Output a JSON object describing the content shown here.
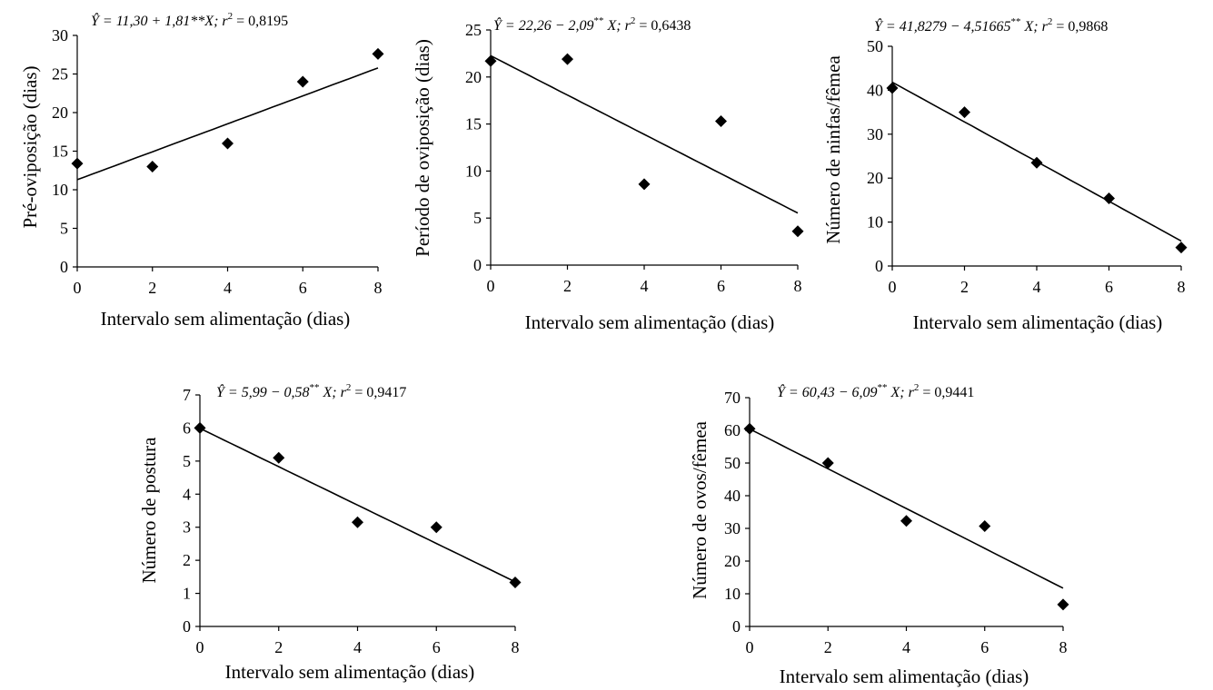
{
  "chart_data": [
    {
      "type": "scatter",
      "equation": "Ŷ = 11,30 + 1,81**X; r² = 0,8195",
      "equation_parts": {
        "lhs": "Ŷ = 11,30 + 1,81**X; ",
        "r": "r",
        "sup": "2",
        "rhs": " = 0,8195"
      },
      "ylabel": "Pré-oviposição (dias)",
      "xlabel": "Intervalo sem alimentação (dias)",
      "xlim": [
        0,
        8
      ],
      "ylim": [
        0,
        30
      ],
      "xticks": [
        "0",
        "2",
        "4",
        "6",
        "8"
      ],
      "yticks": [
        "0",
        "5",
        "10",
        "15",
        "20",
        "25",
        "30"
      ],
      "x": [
        0,
        2,
        4,
        6,
        8
      ],
      "y": [
        13.4,
        13.0,
        16.0,
        24.0,
        27.6
      ],
      "fit": {
        "intercept": 11.3,
        "slope": 1.81
      }
    },
    {
      "type": "scatter",
      "equation": "Ŷ = 22,26 − 2,09** X; r² = 0,6438",
      "equation_parts": {
        "lhs": "Ŷ = 22,26 − 2,09",
        "stars": "**",
        "mid": " X;   ",
        "r": "r",
        "sup": "2",
        "rhs": " = 0,6438"
      },
      "ylabel": "Período de oviposição (dias)",
      "xlabel": "Intervalo sem alimentação (dias)",
      "xlim": [
        0,
        8
      ],
      "ylim": [
        0,
        25
      ],
      "xticks": [
        "0",
        "2",
        "4",
        "6",
        "8"
      ],
      "yticks": [
        "0",
        "5",
        "10",
        "15",
        "20",
        "25"
      ],
      "x": [
        0,
        2,
        4,
        6,
        8
      ],
      "y": [
        21.7,
        21.9,
        8.6,
        15.3,
        3.6
      ],
      "fit": {
        "intercept": 22.26,
        "slope": -2.09
      }
    },
    {
      "type": "scatter",
      "equation": "Ŷ = 41,8279 − 4,51665** X; r² = 0,9868",
      "equation_parts": {
        "lhs": "Ŷ = 41,8279 − 4,51665",
        "stars": "**",
        "mid": " X;   ",
        "r": "r",
        "sup": "2",
        "rhs": " = 0,9868"
      },
      "ylabel": "Número de ninfas/fêmea",
      "xlabel": "Intervalo sem alimentação (dias)",
      "xlim": [
        0,
        8
      ],
      "ylim": [
        0,
        50
      ],
      "xticks": [
        "0",
        "2",
        "4",
        "6",
        "8"
      ],
      "yticks": [
        "0",
        "10",
        "20",
        "30",
        "40",
        "50"
      ],
      "x": [
        0,
        2,
        4,
        6,
        8
      ],
      "y": [
        40.5,
        35.0,
        23.5,
        15.4,
        4.2
      ],
      "fit": {
        "intercept": 41.8279,
        "slope": -4.51665
      }
    },
    {
      "type": "scatter",
      "equation": "Ŷ = 5,99 − 0,58** X; r² = 0,9417",
      "equation_parts": {
        "lhs": "Ŷ = 5,99 − 0,58",
        "stars": "**",
        "mid": " X;   ",
        "r": "r",
        "sup": "2",
        "rhs": " = 0,9417"
      },
      "ylabel": "Número de postura",
      "xlabel": "Intervalo sem alimentação (dias)",
      "xlim": [
        0,
        8
      ],
      "ylim": [
        0,
        7
      ],
      "xticks": [
        "0",
        "2",
        "4",
        "6",
        "8"
      ],
      "yticks": [
        "0",
        "1",
        "2",
        "3",
        "4",
        "5",
        "6",
        "7"
      ],
      "x": [
        0,
        2,
        4,
        6,
        8
      ],
      "y": [
        6.0,
        5.1,
        3.15,
        3.0,
        1.33
      ],
      "fit": {
        "intercept": 5.99,
        "slope": -0.58
      }
    },
    {
      "type": "scatter",
      "equation": "Ŷ = 60,43 − 6,09** X; r² = 0,9441",
      "equation_parts": {
        "lhs": "Ŷ = 60,43 − 6,09",
        "stars": "**",
        "mid": " X;   ",
        "r": "r",
        "sup": "2",
        "rhs": " = 0,9441"
      },
      "ylabel": "Número de ovos/fêmea",
      "xlabel": "Intervalo sem alimentação (dias)",
      "xlim": [
        0,
        8
      ],
      "ylim": [
        0,
        70
      ],
      "xticks": [
        "0",
        "2",
        "4",
        "6",
        "8"
      ],
      "yticks": [
        "0",
        "10",
        "20",
        "30",
        "40",
        "50",
        "60",
        "70"
      ],
      "x": [
        0,
        2,
        4,
        6,
        8
      ],
      "y": [
        60.5,
        50.0,
        32.3,
        30.7,
        6.7
      ],
      "fit": {
        "intercept": 60.43,
        "slope": -6.09
      }
    }
  ]
}
